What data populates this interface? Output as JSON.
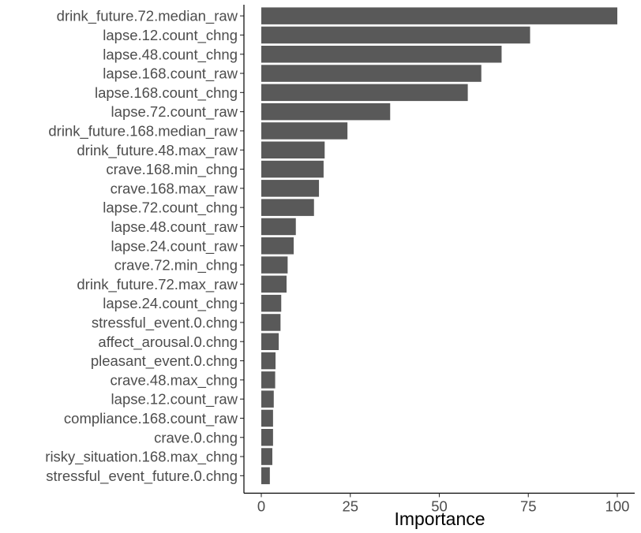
{
  "chart_data": {
    "type": "bar",
    "orientation": "horizontal",
    "title": "",
    "xlabel": "Importance",
    "ylabel": "",
    "xlim": [
      0,
      100
    ],
    "xticks": [
      0,
      25,
      50,
      75,
      100
    ],
    "xtick_labels": [
      "0",
      "25",
      "50",
      "75",
      "100"
    ],
    "grid": false,
    "legend": "none",
    "bar_color": "#595959",
    "categories": [
      "drink_future.72.median_raw",
      "lapse.12.count_chng",
      "lapse.48.count_chng",
      "lapse.168.count_raw",
      "lapse.168.count_chng",
      "lapse.72.count_raw",
      "drink_future.168.median_raw",
      "drink_future.48.max_raw",
      "crave.168.min_chng",
      "crave.168.max_raw",
      "lapse.72.count_chng",
      "lapse.48.count_raw",
      "lapse.24.count_raw",
      "crave.72.min_chng",
      "drink_future.72.max_raw",
      "lapse.24.count_chng",
      "stressful_event.0.chng",
      "affect_arousal.0.chng",
      "pleasant_event.0.chng",
      "crave.48.max_chng",
      "lapse.12.count_raw",
      "compliance.168.count_raw",
      "crave.0.chng",
      "risky_situation.168.max_chng",
      "stressful_event_future.0.chng"
    ],
    "values": [
      100,
      75.5,
      67.5,
      61.8,
      58,
      36.2,
      24.2,
      17.8,
      17.5,
      16.2,
      14.8,
      9.7,
      9.1,
      7.4,
      7.1,
      5.6,
      5.4,
      4.9,
      4.0,
      3.9,
      3.5,
      3.3,
      3.3,
      3.1,
      2.4
    ]
  }
}
